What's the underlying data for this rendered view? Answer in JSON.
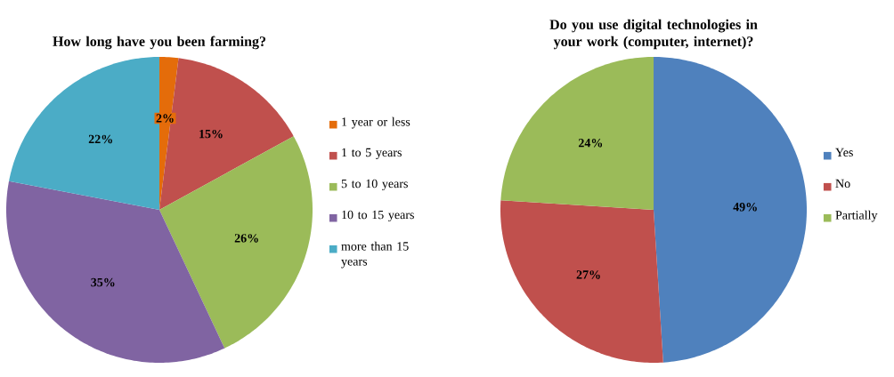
{
  "chart_data": [
    {
      "type": "pie",
      "title": "How long have you been farming?",
      "categories": [
        "1 year or less",
        "1 to 5 years",
        "5 to 10 years",
        "10 to 15 years",
        "more than 15 years"
      ],
      "values": [
        2,
        15,
        26,
        35,
        22
      ],
      "value_labels": [
        "2%",
        "15%",
        "26%",
        "35%",
        "22%"
      ],
      "colors": [
        "#e46c0a",
        "#c0504d",
        "#9bbb59",
        "#8064a2",
        "#4bacc6"
      ],
      "legend": "right"
    },
    {
      "type": "pie",
      "title": "Do you use digital technologies in your work (computer, internet)?",
      "categories": [
        "Yes",
        "No",
        "Partially"
      ],
      "values": [
        49,
        27,
        24
      ],
      "value_labels": [
        "49%",
        "27%",
        "24%"
      ],
      "colors": [
        "#4f81bd",
        "#c0504d",
        "#9bbb59"
      ],
      "legend": "right"
    }
  ]
}
